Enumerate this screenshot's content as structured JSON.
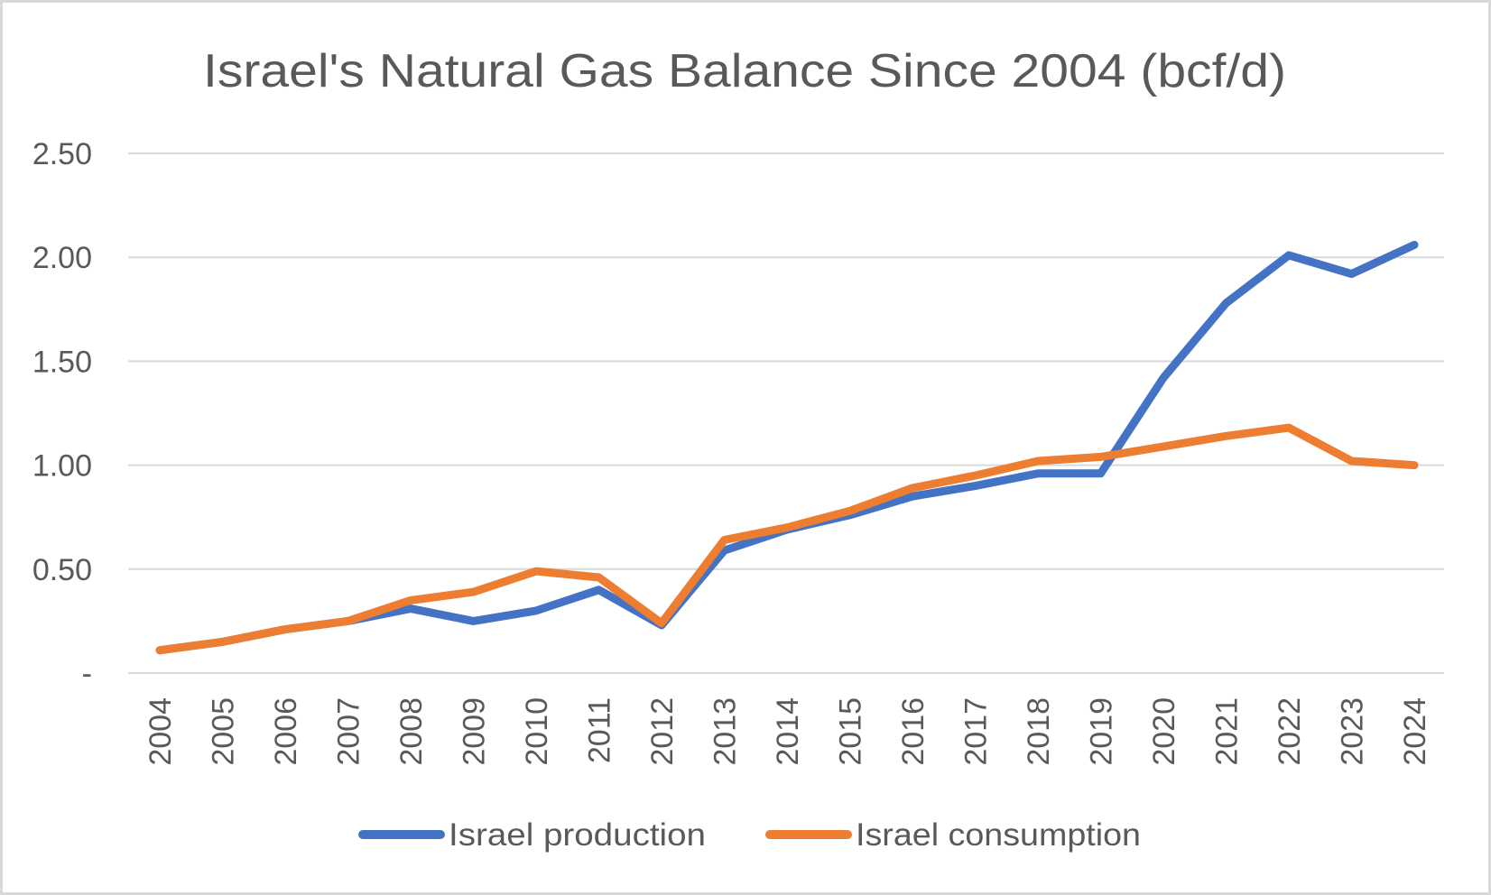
{
  "chart_data": {
    "type": "line",
    "title": "Israel's Natural Gas Balance Since 2004 (bcf/d)",
    "xlabel": "",
    "ylabel": "",
    "categories": [
      "2004",
      "2005",
      "2006",
      "2007",
      "2008",
      "2009",
      "2010",
      "2011",
      "2012",
      "2013",
      "2014",
      "2015",
      "2016",
      "2017",
      "2018",
      "2019",
      "2020",
      "2021",
      "2022",
      "2023",
      "2024"
    ],
    "ylim": [
      0,
      2.5
    ],
    "yticks": [
      0,
      0.5,
      1.0,
      1.5,
      2.0,
      2.5
    ],
    "ytick_labels": [
      "-",
      "0.50",
      "1.00",
      "1.50",
      "2.00",
      "2.50"
    ],
    "grid": true,
    "legend_position": "bottom",
    "series": [
      {
        "name": "Israel production",
        "color": "#4472c4",
        "values": [
          0.11,
          0.15,
          0.21,
          0.25,
          0.31,
          0.25,
          0.3,
          0.4,
          0.23,
          0.59,
          0.69,
          0.76,
          0.85,
          0.9,
          0.96,
          0.96,
          1.42,
          1.78,
          2.01,
          1.92,
          2.06
        ]
      },
      {
        "name": "Israel consumption",
        "color": "#ed7d31",
        "values": [
          0.11,
          0.15,
          0.21,
          0.25,
          0.35,
          0.39,
          0.49,
          0.46,
          0.24,
          0.64,
          0.7,
          0.78,
          0.89,
          0.95,
          1.02,
          1.04,
          1.09,
          1.14,
          1.18,
          1.02,
          1.0
        ]
      }
    ]
  },
  "style": {
    "text_color": "#595959",
    "grid_color": "#d9d9d9",
    "border_color": "#d9d9d9"
  }
}
